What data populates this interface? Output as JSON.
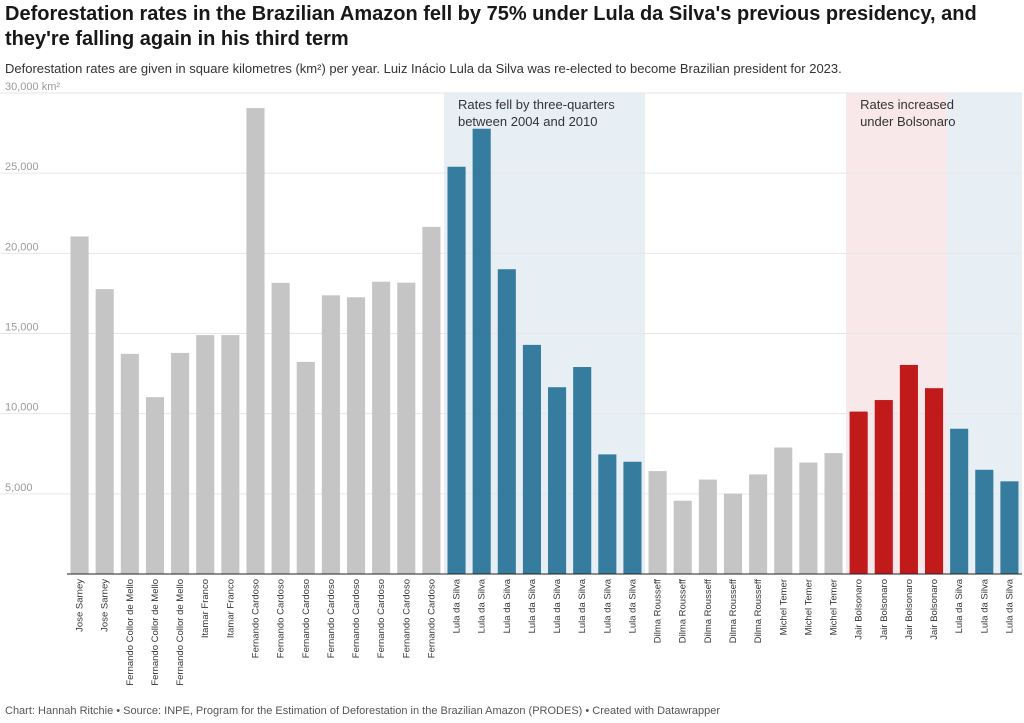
{
  "header": {
    "title": "Deforestation rates in the Brazilian Amazon fell by 75% under Lula da Silva's previous presidency, and they're falling again in his third term",
    "subtitle": "Deforestation rates are given in square kilometres (km²) per year. Luiz Inácio Lula da Silva was re-elected to become Brazilian president for 2023."
  },
  "footer": {
    "credit": "Chart: Hannah Ritchie • Source: INPE, Program for the Estimation of Deforestation in the Brazilian Amazon (PRODES) • Created with Datawrapper"
  },
  "colors": {
    "grey_bar": "#c5c5c5",
    "lula_bar": "#357c9e",
    "bolsonaro_bar": "#c11a1a",
    "lula_band": "#e7eff4",
    "bolsonaro_band": "#f8e8ea",
    "grid": "#e6e6e6",
    "axis": "#222222"
  },
  "chart_data": {
    "type": "bar",
    "ylim": [
      0,
      30000
    ],
    "yticks": [
      {
        "value": 5000,
        "label": "5,000"
      },
      {
        "value": 10000,
        "label": "10,000"
      },
      {
        "value": 15000,
        "label": "15,000"
      },
      {
        "value": 20000,
        "label": "20,000"
      },
      {
        "value": 25000,
        "label": "25,000"
      },
      {
        "value": 30000,
        "label": "30,000 km²"
      }
    ],
    "categories": [
      "Jose Sarney",
      "Jose Sarney",
      "Fernando Collor de Mello",
      "Fernando Collor de Mello",
      "Fernando Collor de Mello",
      "Itamar Franco",
      "Itamar Franco",
      "Fernando Cardoso",
      "Fernando Cardoso",
      "Fernando Cardoso",
      "Fernando Cardoso",
      "Fernando Cardoso",
      "Fernando Cardoso",
      "Fernando Cardoso",
      "Fernando Cardoso",
      "Lula da Silva",
      "Lula da Silva",
      "Lula da Silva",
      "Lula da Silva",
      "Lula da Silva",
      "Lula da Silva",
      "Lula da Silva",
      "Lula da Silva",
      "Dilma Rousseff",
      "Dilma Rousseff",
      "Dilma Rousseff",
      "Dilma Rousseff",
      "Dilma Rousseff",
      "Michel Temer",
      "Michel Temer",
      "Michel Temer",
      "Jair Bolsonaro",
      "Jair Bolsonaro",
      "Jair Bolsonaro",
      "Jair Bolsonaro",
      "Lula da Silva",
      "Lula da Silva",
      "Lula da Silva"
    ],
    "values": [
      21050,
      17770,
      13730,
      11030,
      13790,
      14900,
      14900,
      29060,
      18160,
      13230,
      17380,
      17260,
      18230,
      18170,
      21650,
      25400,
      27770,
      19010,
      14290,
      11650,
      12910,
      7460,
      7000,
      6420,
      4570,
      5890,
      5010,
      6210,
      7890,
      6950,
      7540,
      10130,
      10850,
      13040,
      11590,
      9060,
      6500,
      5780
    ],
    "bar_groups": [
      "grey",
      "grey",
      "grey",
      "grey",
      "grey",
      "grey",
      "grey",
      "grey",
      "grey",
      "grey",
      "grey",
      "grey",
      "grey",
      "grey",
      "grey",
      "lula",
      "lula",
      "lula",
      "lula",
      "lula",
      "lula",
      "lula",
      "lula",
      "grey",
      "grey",
      "grey",
      "grey",
      "grey",
      "grey",
      "grey",
      "grey",
      "bolsonaro",
      "bolsonaro",
      "bolsonaro",
      "bolsonaro",
      "lula",
      "lula",
      "lula"
    ],
    "bands": [
      {
        "from_index": 15,
        "to_index": 22,
        "group": "lula"
      },
      {
        "from_index": 31,
        "to_index": 34,
        "group": "bolsonaro"
      },
      {
        "from_index": 35,
        "to_index": 37,
        "group": "lula"
      }
    ],
    "annotations": [
      {
        "lines": [
          "Rates fell by three-quarters",
          "between 2004 and 2010"
        ],
        "at_index": 15
      },
      {
        "lines": [
          "Rates increased",
          "under Bolsonaro"
        ],
        "at_index": 31
      }
    ]
  }
}
